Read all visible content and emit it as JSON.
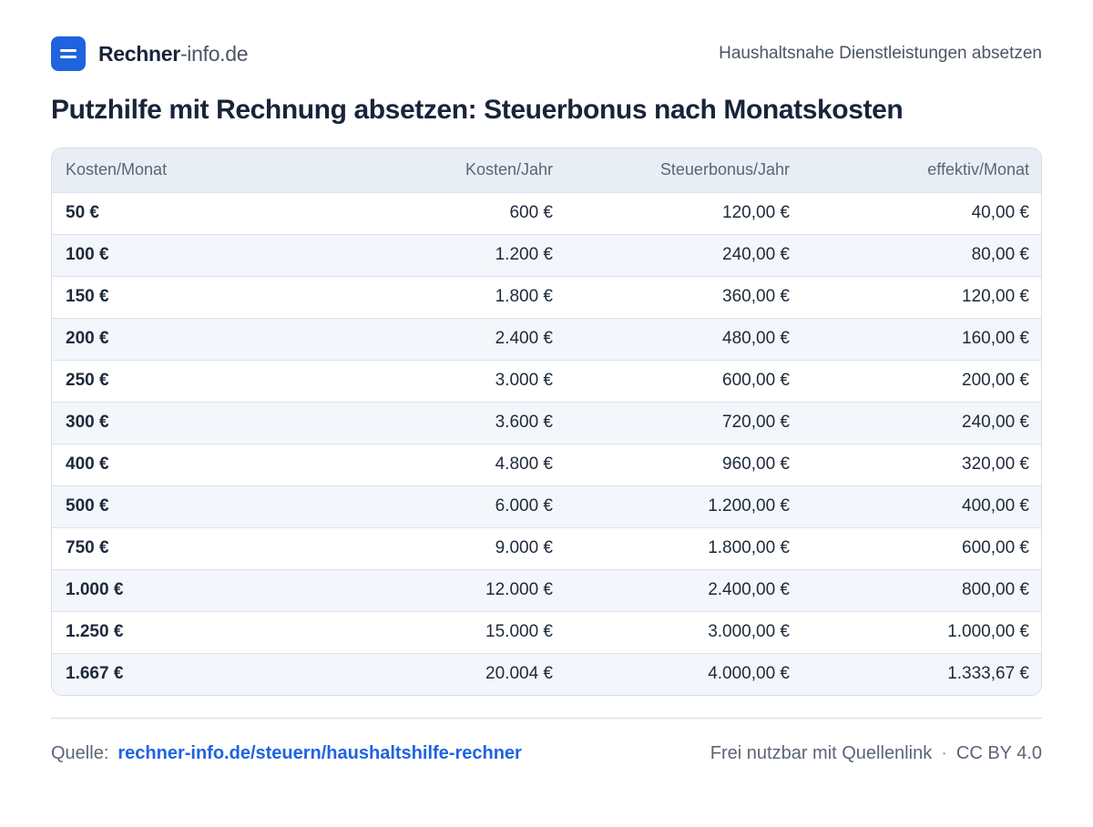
{
  "brand": {
    "name": "Rechner",
    "domain": "-info.de"
  },
  "topic": "Haushaltsnahe Dienstleistungen absetzen",
  "title": "Putzhilfe mit Rechnung absetzen: Steuerbonus nach Monatskosten",
  "table": {
    "headers": [
      "Kosten/Monat",
      "Kosten/Jahr",
      "Steuerbonus/Jahr",
      "effektiv/Monat"
    ],
    "rows": [
      [
        "50 €",
        "600 €",
        "120,00 €",
        "40,00 €"
      ],
      [
        "100 €",
        "1.200 €",
        "240,00 €",
        "80,00 €"
      ],
      [
        "150 €",
        "1.800 €",
        "360,00 €",
        "120,00 €"
      ],
      [
        "200 €",
        "2.400 €",
        "480,00 €",
        "160,00 €"
      ],
      [
        "250 €",
        "3.000 €",
        "600,00 €",
        "200,00 €"
      ],
      [
        "300 €",
        "3.600 €",
        "720,00 €",
        "240,00 €"
      ],
      [
        "400 €",
        "4.800 €",
        "960,00 €",
        "320,00 €"
      ],
      [
        "500 €",
        "6.000 €",
        "1.200,00 €",
        "400,00 €"
      ],
      [
        "750 €",
        "9.000 €",
        "1.800,00 €",
        "600,00 €"
      ],
      [
        "1.000 €",
        "12.000 €",
        "2.400,00 €",
        "800,00 €"
      ],
      [
        "1.250 €",
        "15.000 €",
        "3.000,00 €",
        "1.000,00 €"
      ],
      [
        "1.667 €",
        "20.004 €",
        "4.000,00 €",
        "1.333,67 €"
      ]
    ]
  },
  "footer": {
    "source_label": "Quelle:",
    "source_link": "rechner-info.de/steuern/haushaltshilfe-rechner",
    "license_text": "Frei nutzbar mit Quellenlink",
    "separator": "·",
    "license": "CC BY 4.0"
  },
  "colors": {
    "accent": "#1f63e0",
    "header_bg": "#e9eef5",
    "text": "#1e2a3b"
  }
}
